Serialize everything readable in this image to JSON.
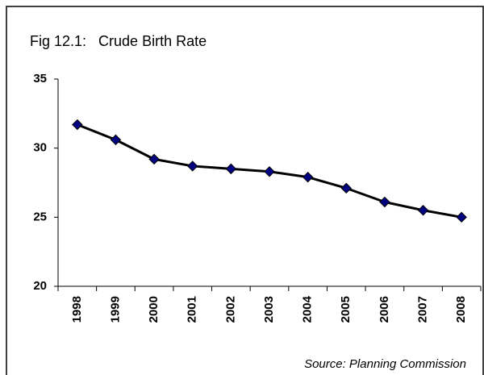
{
  "chart_data": {
    "type": "line",
    "title": "Fig 12.1:   Crude Birth Rate",
    "source": "Source: Planning Commission",
    "categories": [
      "1998",
      "1999",
      "2000",
      "2001",
      "2002",
      "2003",
      "2004",
      "2005",
      "2006",
      "2007",
      "2008"
    ],
    "values": [
      31.7,
      30.6,
      29.2,
      28.7,
      28.5,
      28.3,
      27.9,
      27.1,
      26.1,
      25.5,
      25.0
    ],
    "color": "#000000",
    "marker_color": "#000080",
    "ylim": [
      20,
      35
    ],
    "yticks": [
      20,
      25,
      30,
      35
    ],
    "grid": false
  }
}
